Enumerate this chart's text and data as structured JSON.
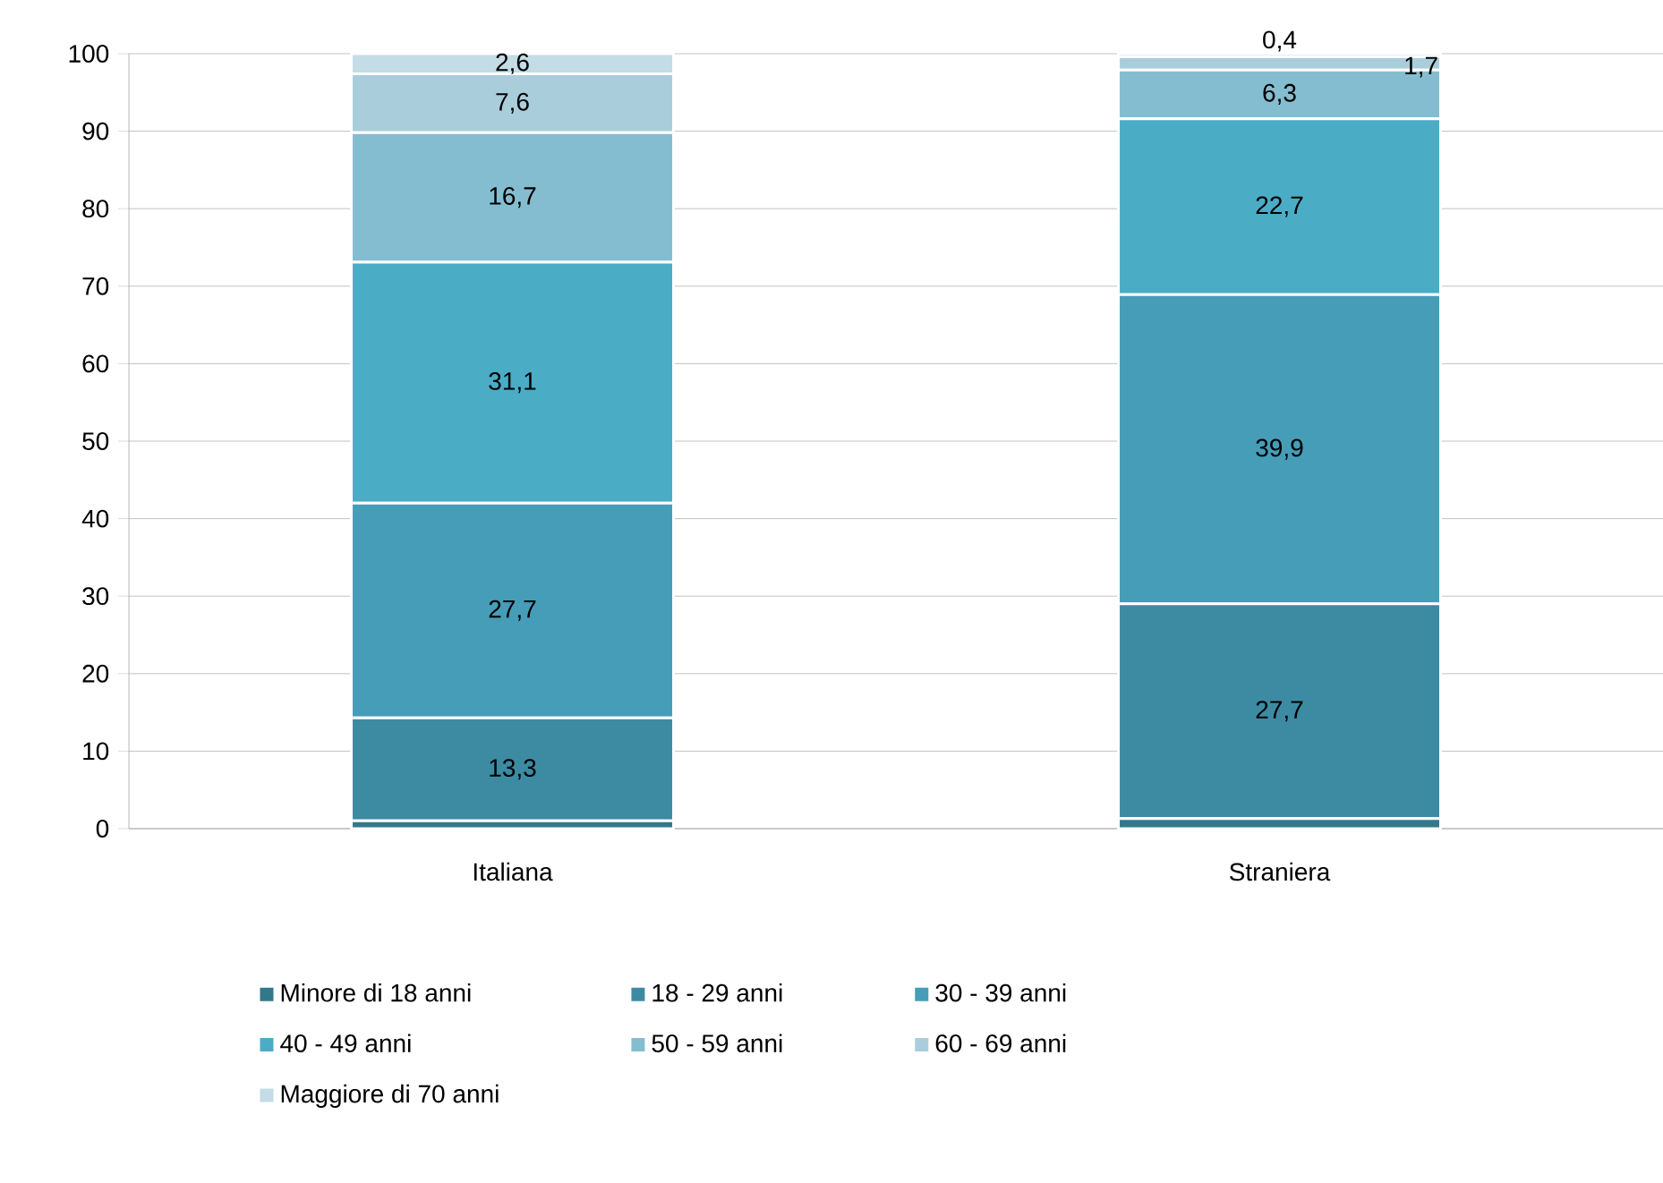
{
  "chart_data": {
    "type": "bar",
    "stacked": true,
    "categories": [
      "Italiana",
      "Straniera"
    ],
    "ylim": [
      0,
      100
    ],
    "yticks": [
      0,
      10,
      20,
      30,
      40,
      50,
      60,
      70,
      80,
      90,
      100
    ],
    "grid": "y",
    "legend": "bottom",
    "series": [
      {
        "name": "Minore di 18 anni",
        "color": "#31788a",
        "values": [
          1.0,
          1.3
        ],
        "value_labels": [
          null,
          null
        ]
      },
      {
        "name": "18 - 29 anni",
        "color": "#3c8ba3",
        "values": [
          13.3,
          27.7
        ],
        "value_labels": [
          "13,3",
          "27,7"
        ]
      },
      {
        "name": "30 - 39 anni",
        "color": "#459db8",
        "values": [
          27.7,
          39.9
        ],
        "value_labels": [
          "27,7",
          "39,9"
        ]
      },
      {
        "name": "40 - 49 anni",
        "color": "#4bacc6",
        "values": [
          31.1,
          22.7
        ],
        "value_labels": [
          "31,1",
          "22,7"
        ]
      },
      {
        "name": "50 - 59 anni",
        "color": "#85bdd0",
        "values": [
          16.7,
          6.3
        ],
        "value_labels": [
          "16,7",
          "6,3"
        ]
      },
      {
        "name": "60 - 69 anni",
        "color": "#a9cddb",
        "values": [
          7.6,
          1.7
        ],
        "value_labels": [
          "7,6",
          "1,7"
        ]
      },
      {
        "name": "Maggiore di 70 anni",
        "color": "#c4dce6",
        "values": [
          2.6,
          0.4
        ],
        "value_labels": [
          "2,6",
          "0,4"
        ]
      }
    ]
  }
}
